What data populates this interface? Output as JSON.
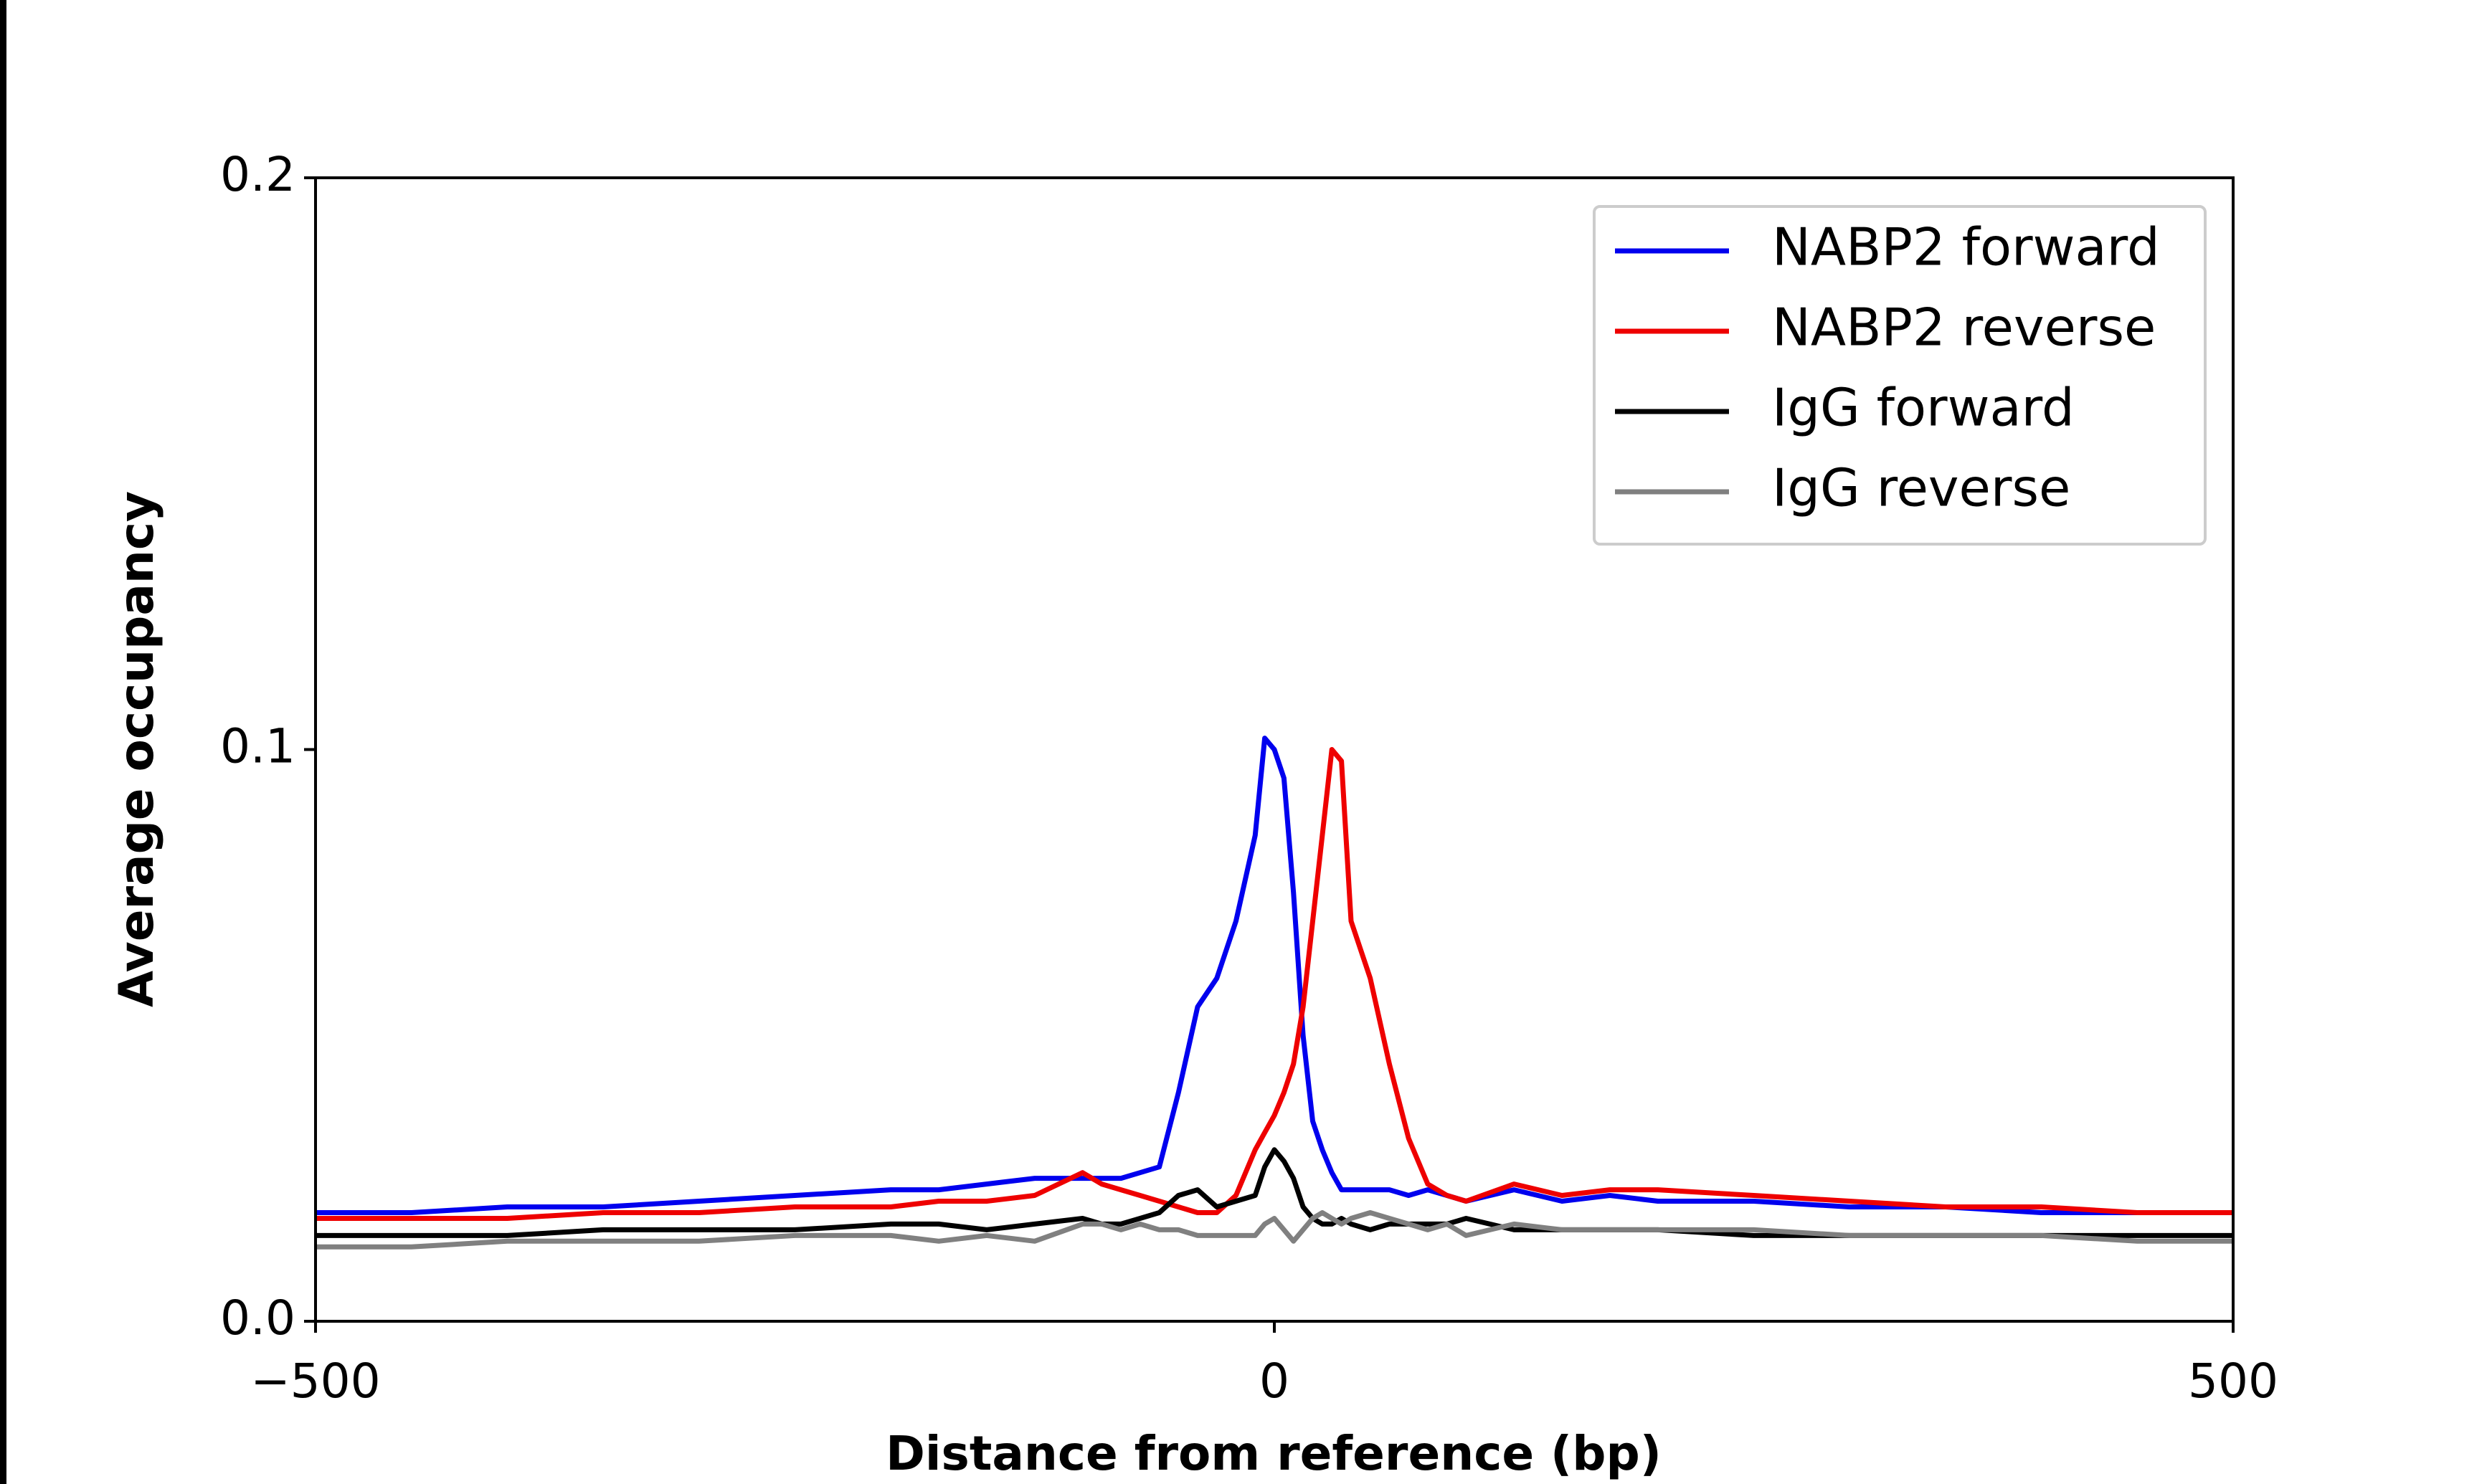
{
  "chart_data": {
    "type": "line",
    "x_label": "Distance from reference (bp)",
    "y_label": "Average occupancy",
    "x": [
      -500,
      -450,
      -400,
      -350,
      -300,
      -250,
      -200,
      -175,
      -150,
      -125,
      -100,
      -90,
      -80,
      -70,
      -60,
      -50,
      -40,
      -30,
      -20,
      -10,
      -5,
      0,
      5,
      10,
      15,
      20,
      25,
      30,
      35,
      40,
      50,
      60,
      70,
      80,
      90,
      100,
      125,
      150,
      175,
      200,
      250,
      300,
      350,
      400,
      450,
      500
    ],
    "series": [
      {
        "name": "NABP2 forward",
        "color": "#0000ee",
        "values": [
          0.019,
          0.019,
          0.02,
          0.02,
          0.021,
          0.022,
          0.023,
          0.023,
          0.024,
          0.025,
          0.025,
          0.025,
          0.025,
          0.026,
          0.027,
          0.04,
          0.055,
          0.06,
          0.07,
          0.085,
          0.102,
          0.1,
          0.095,
          0.075,
          0.05,
          0.035,
          0.03,
          0.026,
          0.023,
          0.023,
          0.023,
          0.023,
          0.022,
          0.023,
          0.022,
          0.021,
          0.023,
          0.021,
          0.022,
          0.021,
          0.021,
          0.02,
          0.02,
          0.019,
          0.019,
          0.019
        ]
      },
      {
        "name": "NABP2 reverse",
        "color": "#ee0000",
        "values": [
          0.018,
          0.018,
          0.018,
          0.019,
          0.019,
          0.02,
          0.02,
          0.021,
          0.021,
          0.022,
          0.026,
          0.024,
          0.023,
          0.022,
          0.021,
          0.02,
          0.019,
          0.019,
          0.022,
          0.03,
          0.033,
          0.036,
          0.04,
          0.045,
          0.055,
          0.07,
          0.085,
          0.1,
          0.098,
          0.07,
          0.06,
          0.045,
          0.032,
          0.024,
          0.022,
          0.021,
          0.024,
          0.022,
          0.023,
          0.023,
          0.022,
          0.021,
          0.02,
          0.02,
          0.019,
          0.019
        ]
      },
      {
        "name": "IgG forward",
        "color": "#000000",
        "values": [
          0.015,
          0.015,
          0.015,
          0.016,
          0.016,
          0.016,
          0.017,
          0.017,
          0.016,
          0.017,
          0.018,
          0.017,
          0.017,
          0.018,
          0.019,
          0.022,
          0.023,
          0.02,
          0.021,
          0.022,
          0.027,
          0.03,
          0.028,
          0.025,
          0.02,
          0.018,
          0.017,
          0.017,
          0.018,
          0.017,
          0.016,
          0.017,
          0.017,
          0.017,
          0.017,
          0.018,
          0.016,
          0.016,
          0.016,
          0.016,
          0.015,
          0.015,
          0.015,
          0.015,
          0.015,
          0.015
        ]
      },
      {
        "name": "IgG reverse",
        "color": "#808080",
        "values": [
          0.013,
          0.013,
          0.014,
          0.014,
          0.014,
          0.015,
          0.015,
          0.014,
          0.015,
          0.014,
          0.017,
          0.017,
          0.016,
          0.017,
          0.016,
          0.016,
          0.015,
          0.015,
          0.015,
          0.015,
          0.017,
          0.018,
          0.016,
          0.014,
          0.016,
          0.018,
          0.019,
          0.018,
          0.017,
          0.018,
          0.019,
          0.018,
          0.017,
          0.016,
          0.017,
          0.015,
          0.017,
          0.016,
          0.016,
          0.016,
          0.016,
          0.015,
          0.015,
          0.015,
          0.014,
          0.014
        ]
      }
    ],
    "xlim": [
      -500,
      500
    ],
    "xticks": [
      {
        "value": -500,
        "label": "−500"
      },
      0,
      500
    ],
    "ylim": [
      0,
      0.2
    ],
    "yticks": [
      {
        "value": 0,
        "label": "0.0"
      },
      0.1,
      0.2
    ],
    "legend": "upper right"
  }
}
